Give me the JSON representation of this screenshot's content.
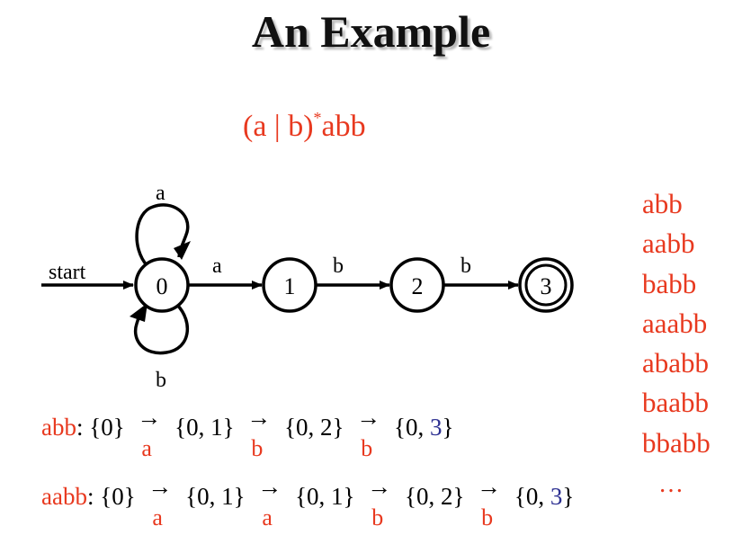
{
  "title": "An Example",
  "regex": {
    "main": "(a | b)",
    "sup": "*",
    "tail": "abb"
  },
  "diagram": {
    "start_label": "start",
    "states": [
      "0",
      "1",
      "2",
      "3"
    ],
    "accepting_state": "3",
    "self_loop_a": "a",
    "self_loop_b": "b",
    "edge_0_1": "a",
    "edge_1_2": "b",
    "edge_2_3": "b"
  },
  "examples": [
    "abb",
    "aabb",
    "babb",
    "aaabb",
    "ababb",
    "baabb",
    "bbabb"
  ],
  "examples_more": "…",
  "traces": [
    {
      "label": "abb",
      "steps": [
        "{0}",
        "{0, 1}",
        "{0, 2}",
        "{0, "
      ],
      "final_blue": "3",
      "final_close": "}",
      "symbols": [
        "a",
        "b",
        "b"
      ]
    },
    {
      "label": "aabb",
      "steps": [
        "{0}",
        "{0, 1}",
        "{0, 1}",
        "{0, 2}",
        "{0, "
      ],
      "final_blue": "3",
      "final_close": "}",
      "symbols": [
        "a",
        "a",
        "b",
        "b"
      ]
    }
  ],
  "colors": {
    "red": "#e8391f",
    "blue": "#2e3192",
    "black": "#000000"
  }
}
